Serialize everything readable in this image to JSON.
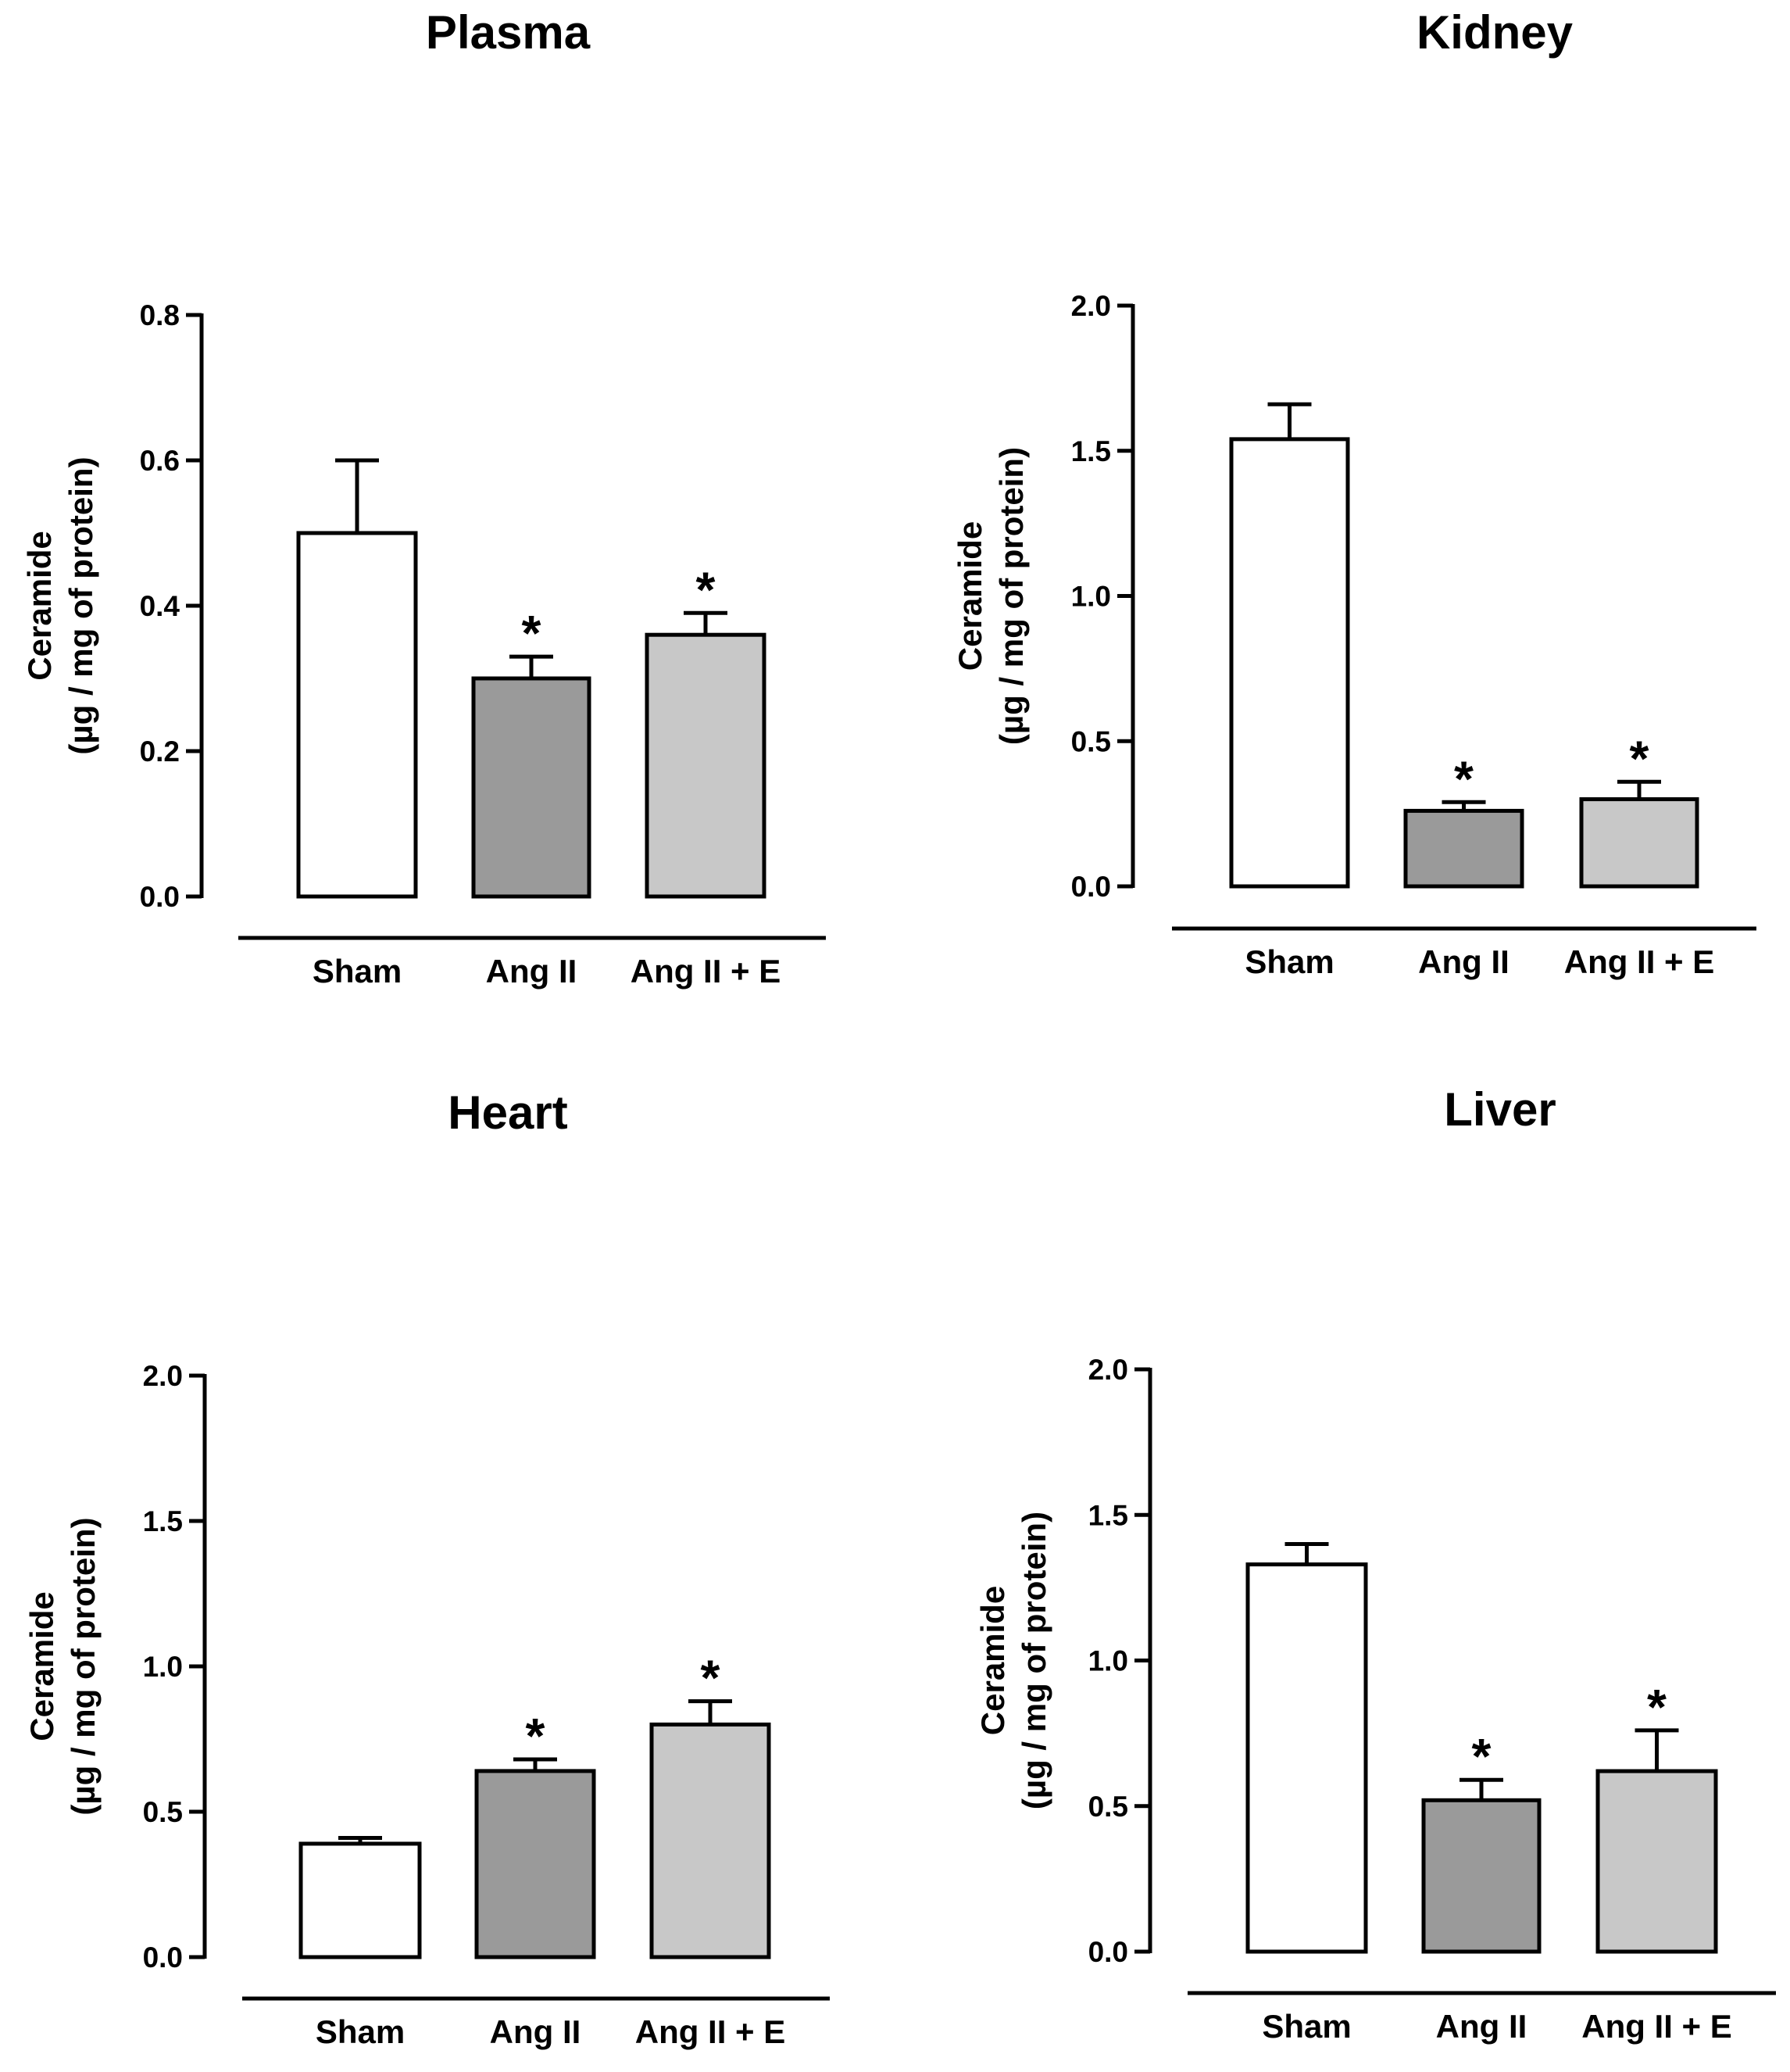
{
  "chart_data": [
    {
      "type": "bar",
      "title": "Plasma",
      "categories": [
        "Sham",
        "Ang II",
        "Ang II + E"
      ],
      "values": [
        0.5,
        0.3,
        0.36
      ],
      "errors": [
        0.1,
        0.03,
        0.03
      ],
      "significance": [
        "",
        "*",
        "*"
      ],
      "bar_colors": [
        "#ffffff",
        "#9a9a9a",
        "#c8c8c8"
      ],
      "ylabel_line1": "Ceramide",
      "ylabel_line2": "(µg / mg of protein)",
      "yticks": [
        "0.0",
        "0.2",
        "0.4",
        "0.6",
        "0.8"
      ],
      "ylim": [
        0,
        0.8
      ]
    },
    {
      "type": "bar",
      "title": "Kidney",
      "categories": [
        "Sham",
        "Ang II",
        "Ang II + E"
      ],
      "values": [
        1.54,
        0.26,
        0.3
      ],
      "errors": [
        0.12,
        0.03,
        0.06
      ],
      "significance": [
        "",
        "*",
        "*"
      ],
      "bar_colors": [
        "#ffffff",
        "#9a9a9a",
        "#c8c8c8"
      ],
      "ylabel_line1": "Ceramide",
      "ylabel_line2": "(µg / mg of protein)",
      "yticks": [
        "0.0",
        "0.5",
        "1.0",
        "1.5",
        "2.0"
      ],
      "ylim": [
        0,
        2.0
      ]
    },
    {
      "type": "bar",
      "title": "Heart",
      "categories": [
        "Sham",
        "Ang II",
        "Ang II + E"
      ],
      "values": [
        0.39,
        0.64,
        0.8
      ],
      "errors": [
        0.02,
        0.04,
        0.08
      ],
      "significance": [
        "",
        "*",
        "*"
      ],
      "bar_colors": [
        "#ffffff",
        "#9a9a9a",
        "#c8c8c8"
      ],
      "ylabel_line1": "Ceramide",
      "ylabel_line2": "(µg / mg of protein)",
      "yticks": [
        "0.0",
        "0.5",
        "1.0",
        "1.5",
        "2.0"
      ],
      "ylim": [
        0,
        2.0
      ]
    },
    {
      "type": "bar",
      "title": "Liver",
      "categories": [
        "Sham",
        "Ang II",
        "Ang II + E"
      ],
      "values": [
        1.33,
        0.52,
        0.62
      ],
      "errors": [
        0.07,
        0.07,
        0.14
      ],
      "significance": [
        "",
        "*",
        "*"
      ],
      "bar_colors": [
        "#ffffff",
        "#9a9a9a",
        "#c8c8c8"
      ],
      "ylabel_line1": "Ceramide",
      "ylabel_line2": "(µg / mg of protein)",
      "yticks": [
        "0.0",
        "0.5",
        "1.0",
        "1.5",
        "2.0"
      ],
      "ylim": [
        0,
        2.0
      ]
    }
  ]
}
